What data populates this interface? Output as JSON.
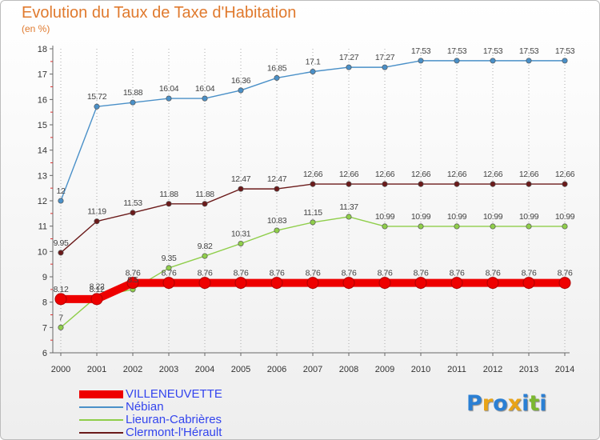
{
  "header": {
    "title": "Evolution du Taux de Taxe d'Habitation",
    "unit": "(en %)"
  },
  "colors": {
    "title": "#e07a2e",
    "legend_text": "#3344ee",
    "axis": "#666666",
    "grid": "#aaaaaa"
  },
  "logo": {
    "text": "Proxiti",
    "letters": [
      "P",
      "r",
      "o",
      "x",
      "i",
      "t",
      "i"
    ],
    "letter_colors": [
      "#2a7fd4",
      "#e8a317",
      "#2a7fd4",
      "#e8a317",
      "#2a7fd4",
      "#7cb82f",
      "#2a7fd4"
    ]
  },
  "chart_data": {
    "type": "line",
    "x": [
      "2000",
      "2001",
      "2002",
      "2003",
      "2004",
      "2005",
      "2006",
      "2007",
      "2008",
      "2009",
      "2010",
      "2011",
      "2012",
      "2013",
      "2014"
    ],
    "ylim": [
      6,
      18
    ],
    "yticks": [
      "6",
      "7",
      "8",
      "9",
      "10",
      "11",
      "12",
      "13",
      "14",
      "15",
      "16",
      "17",
      "18"
    ],
    "grid": "vertical dotted",
    "legend_position": "bottom-left",
    "series": [
      {
        "name": "VILLENEUVETTE",
        "color": "#ee0000",
        "thick": true,
        "values": [
          8.12,
          8.12,
          8.76,
          8.76,
          8.76,
          8.76,
          8.76,
          8.76,
          8.76,
          8.76,
          8.76,
          8.76,
          8.76,
          8.76,
          8.76
        ],
        "labels": [
          "8.12",
          "8.12",
          "8.76",
          "8.76",
          "8.76",
          "8.76",
          "8.76",
          "8.76",
          "8.76",
          "8.76",
          "8.76",
          "8.76",
          "8.76",
          "8.76",
          "8.76"
        ]
      },
      {
        "name": "Nébian",
        "color": "#4a90c8",
        "values": [
          12,
          15.72,
          15.88,
          16.04,
          16.04,
          16.36,
          16.85,
          17.1,
          17.27,
          17.27,
          17.53,
          17.53,
          17.53,
          17.53,
          17.53
        ],
        "labels": [
          "12",
          "15.72",
          "15.88",
          "16.04",
          "16.04",
          "16.36",
          "16.85",
          "17.1",
          "17.27",
          "17.27",
          "17.53",
          "17.53",
          "17.53",
          "17.53",
          "17.53"
        ]
      },
      {
        "name": "Lieuran-Cabrières",
        "color": "#8fce4a",
        "values": [
          7,
          8.22,
          8.5,
          9.35,
          9.82,
          10.31,
          10.83,
          11.15,
          11.37,
          10.99,
          10.99,
          10.99,
          10.99,
          10.99,
          10.99
        ],
        "labels": [
          "7",
          "8.22",
          "8.5",
          "9.35",
          "9.82",
          "10.31",
          "10.83",
          "11.15",
          "11.37",
          "10.99",
          "10.99",
          "10.99",
          "10.99",
          "10.99",
          "10.99"
        ]
      },
      {
        "name": "Clermont-l'Hérault",
        "color": "#6b1a1a",
        "values": [
          9.95,
          11.19,
          11.53,
          11.88,
          11.88,
          12.47,
          12.47,
          12.66,
          12.66,
          12.66,
          12.66,
          12.66,
          12.66,
          12.66,
          12.66
        ],
        "labels": [
          "9.95",
          "11.19",
          "11.53",
          "11.88",
          "11.88",
          "12.47",
          "12.47",
          "12.66",
          "12.66",
          "12.66",
          "12.66",
          "12.66",
          "12.66",
          "12.66",
          "12.66"
        ]
      }
    ]
  }
}
